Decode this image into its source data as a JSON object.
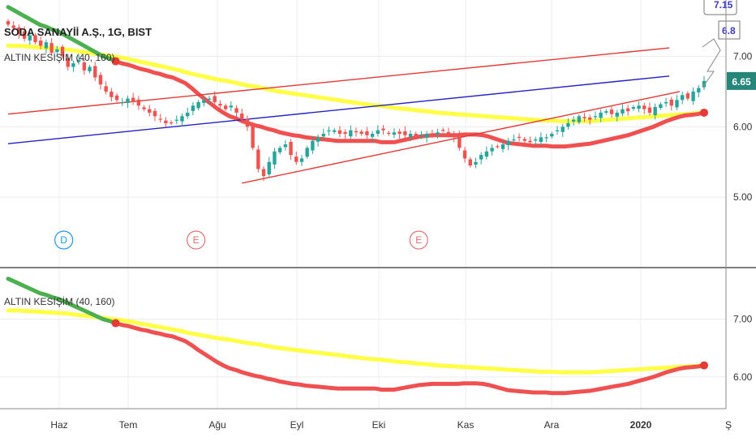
{
  "chart_data": {
    "type": "candlestick",
    "title": "SODA SANAYİİ A.Ş., 1G, BIST",
    "indicator_label": "ALTIN KESİŞİM (40, 160)",
    "x_labels": [
      "Haz",
      "Tem",
      "Ağu",
      "Eyl",
      "Eki",
      "Kas",
      "Ara",
      "2020",
      "Ş"
    ],
    "main_panel": {
      "y_ticks": [
        "7.00",
        "6.00",
        "5.00"
      ],
      "y_range": [
        4.0,
        7.8
      ],
      "price_badge": "6.65",
      "price_badge_color": "#26867a",
      "price_badge_value": 6.65,
      "top_labels": [
        "7.15",
        "6.8"
      ],
      "event_markers": [
        {
          "letter": "D",
          "color": "#2196f3",
          "position": 0.08
        },
        {
          "letter": "E",
          "color": "#e57373",
          "position": 0.27
        },
        {
          "letter": "E",
          "color": "#e57373",
          "position": 0.59
        }
      ],
      "trendlines": [
        {
          "color": "#e53935",
          "from": [
            0.0,
            6.18
          ],
          "to": [
            0.95,
            7.12
          ]
        },
        {
          "color": "#2323c8",
          "from": [
            0.0,
            5.76
          ],
          "to": [
            0.95,
            6.72
          ]
        },
        {
          "color": "#e53935",
          "from": [
            0.336,
            5.2
          ],
          "to": [
            0.965,
            6.5
          ]
        }
      ],
      "close": [
        7.45,
        7.4,
        7.32,
        7.25,
        7.3,
        7.2,
        7.15,
        7.2,
        7.05,
        7.1,
        7.0,
        6.85,
        6.9,
        6.95,
        6.8,
        6.85,
        6.7,
        6.6,
        6.5,
        6.42,
        6.38,
        6.35,
        6.4,
        6.35,
        6.3,
        6.25,
        6.2,
        6.15,
        6.1,
        6.05,
        6.05,
        6.1,
        6.15,
        6.2,
        6.3,
        6.35,
        6.38,
        6.4,
        6.35,
        6.3,
        6.25,
        6.3,
        6.2,
        6.1,
        6.0,
        5.7,
        5.4,
        5.3,
        5.5,
        5.65,
        5.7,
        5.75,
        5.6,
        5.5,
        5.55,
        5.7,
        5.8,
        5.85,
        5.9,
        5.95,
        5.95,
        5.9,
        5.9,
        5.95,
        5.92,
        5.9,
        5.88,
        5.9,
        5.95,
        5.95,
        5.9,
        5.92,
        5.9,
        5.88,
        5.9,
        5.85,
        5.88,
        5.9,
        5.88,
        5.92,
        5.95,
        5.9,
        5.85,
        5.7,
        5.55,
        5.45,
        5.5,
        5.6,
        5.65,
        5.7,
        5.72,
        5.75,
        5.8,
        5.82,
        5.85,
        5.8,
        5.78,
        5.82,
        5.85,
        5.85,
        5.9,
        5.95,
        6.0,
        6.05,
        6.1,
        6.15,
        6.12,
        6.1,
        6.15,
        6.2,
        6.22,
        6.18,
        6.2,
        6.25,
        6.22,
        6.28,
        6.3,
        6.25,
        6.2,
        6.28,
        6.32,
        6.35,
        6.3,
        6.38,
        6.45,
        6.4,
        6.5,
        6.55,
        6.65
      ],
      "sma40": [
        7.7,
        7.65,
        7.6,
        7.55,
        7.5,
        7.45,
        7.42,
        7.38,
        7.35,
        7.3,
        7.25,
        7.2,
        7.15,
        7.1,
        7.05,
        7.0,
        6.97,
        6.93,
        6.9,
        6.88,
        6.85,
        6.82,
        6.8,
        6.77,
        6.75,
        6.72,
        6.7,
        6.66,
        6.62,
        6.55,
        6.47,
        6.4,
        6.33,
        6.26,
        6.2,
        6.15,
        6.12,
        6.08,
        6.05,
        6.02,
        6.0,
        5.97,
        5.95,
        5.92,
        5.9,
        5.88,
        5.87,
        5.85,
        5.84,
        5.83,
        5.82,
        5.81,
        5.8,
        5.8,
        5.8,
        5.8,
        5.8,
        5.8,
        5.8,
        5.78,
        5.78,
        5.78,
        5.8,
        5.82,
        5.84,
        5.86,
        5.87,
        5.88,
        5.88,
        5.88,
        5.88,
        5.88,
        5.89,
        5.89,
        5.89,
        5.88,
        5.86,
        5.83,
        5.8,
        5.77,
        5.76,
        5.75,
        5.74,
        5.73,
        5.73,
        5.73,
        5.72,
        5.72,
        5.72,
        5.73,
        5.74,
        5.75,
        5.76,
        5.78,
        5.8,
        5.82,
        5.84,
        5.86,
        5.88,
        5.91,
        5.94,
        5.97,
        6.0,
        6.04,
        6.08,
        6.11,
        6.14,
        6.16,
        6.17,
        6.18,
        6.2
      ],
      "sma160": [
        7.15,
        7.15,
        7.14,
        7.13,
        7.12,
        7.11,
        7.1,
        7.08,
        7.06,
        7.04,
        7.02,
        7.0,
        6.98,
        6.95,
        6.92,
        6.89,
        6.86,
        6.83,
        6.8,
        6.76,
        6.73,
        6.7,
        6.67,
        6.65,
        6.62,
        6.59,
        6.57,
        6.54,
        6.51,
        6.49,
        6.47,
        6.45,
        6.43,
        6.41,
        6.39,
        6.37,
        6.35,
        6.33,
        6.31,
        6.3,
        6.28,
        6.26,
        6.25,
        6.23,
        6.22,
        6.2,
        6.19,
        6.18,
        6.17,
        6.16,
        6.15,
        6.14,
        6.13,
        6.12,
        6.11,
        6.1,
        6.09,
        6.09,
        6.08,
        6.08,
        6.08,
        6.08,
        6.09,
        6.1,
        6.11,
        6.12,
        6.13,
        6.14,
        6.15,
        6.16,
        6.17,
        6.18,
        6.19,
        6.2
      ]
    },
    "indicator_panel": {
      "y_ticks": [
        "7.00",
        "6.00"
      ],
      "y_range": [
        5.45,
        7.85
      ],
      "cross_markers": [
        "golden-cross-start",
        "cross-end"
      ]
    },
    "colors": {
      "fast_ma_above": "#4caf50",
      "fast_ma_below": "#f05050",
      "slow_ma": "#ffff44",
      "bull_candle": "#26a69a",
      "bear_candle": "#ef5350",
      "cross_marker": "#e53935"
    }
  }
}
